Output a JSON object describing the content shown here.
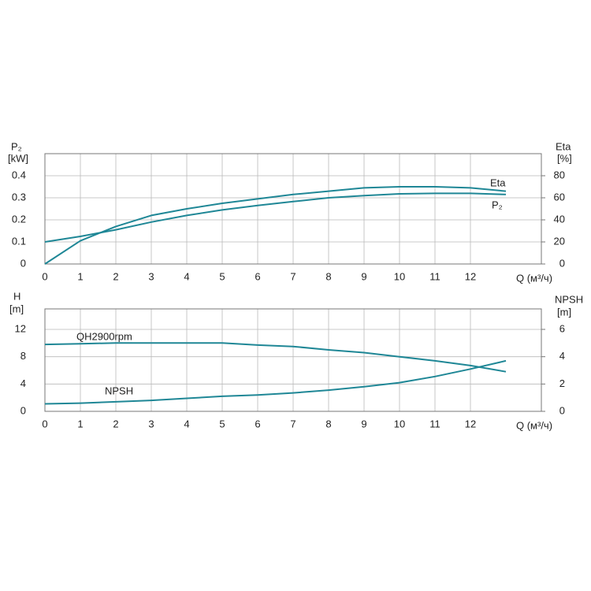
{
  "chart_data": [
    {
      "type": "line",
      "ylabel": "P₂",
      "yunit": "[kW]",
      "y2label": "Eta",
      "y2unit": "[%]",
      "xlabel": "Q (м³/ч)",
      "x": [
        0,
        1,
        2,
        3,
        4,
        5,
        6,
        7,
        8,
        9,
        10,
        11,
        12,
        13
      ],
      "xlim": [
        0,
        14
      ],
      "xticks": [
        0,
        1,
        2,
        3,
        4,
        5,
        6,
        7,
        8,
        9,
        10,
        11,
        12
      ],
      "ylim": [
        0,
        0.5
      ],
      "yticks": [
        0,
        0.1,
        0.2,
        0.3,
        0.4
      ],
      "y2lim": [
        0,
        100
      ],
      "y2ticks": [
        0,
        20,
        40,
        60,
        80
      ],
      "grid": true,
      "series": [
        {
          "name": "Eta",
          "color": "#1f8796",
          "axis": "y2",
          "values": [
            0,
            21,
            34,
            44,
            50,
            55,
            59,
            63,
            66,
            69,
            70,
            70,
            69,
            66
          ]
        },
        {
          "name": "P₂",
          "color": "#1f8796",
          "values": [
            0.1,
            0.125,
            0.155,
            0.19,
            0.22,
            0.245,
            0.265,
            0.283,
            0.3,
            0.31,
            0.318,
            0.32,
            0.32,
            0.315
          ]
        }
      ]
    },
    {
      "type": "line",
      "ylabel": "H",
      "yunit": "[m]",
      "y2label": "NPSH",
      "y2unit": "[m]",
      "xlabel": "Q (м³/ч)",
      "x": [
        0,
        1,
        2,
        3,
        4,
        5,
        6,
        7,
        8,
        9,
        10,
        11,
        12,
        13
      ],
      "xlim": [
        0,
        14
      ],
      "xticks": [
        0,
        1,
        2,
        3,
        4,
        5,
        6,
        7,
        8,
        9,
        10,
        11,
        12
      ],
      "ylim": [
        0,
        15
      ],
      "yticks": [
        0,
        4,
        8,
        12
      ],
      "y2lim": [
        0,
        7.5
      ],
      "y2ticks": [
        0,
        2,
        4,
        6
      ],
      "grid": true,
      "series": [
        {
          "name": "QH2900rpm",
          "color": "#1f8796",
          "values": [
            9.8,
            9.9,
            10,
            10,
            10,
            10,
            9.7,
            9.5,
            9.0,
            8.6,
            8.0,
            7.4,
            6.7,
            5.8
          ]
        },
        {
          "name": "NPSH",
          "color": "#1f8796",
          "axis": "y2",
          "values": [
            0.55,
            0.6,
            0.7,
            0.8,
            0.95,
            1.1,
            1.2,
            1.35,
            1.55,
            1.8,
            2.1,
            2.55,
            3.1,
            3.7
          ]
        }
      ]
    }
  ]
}
